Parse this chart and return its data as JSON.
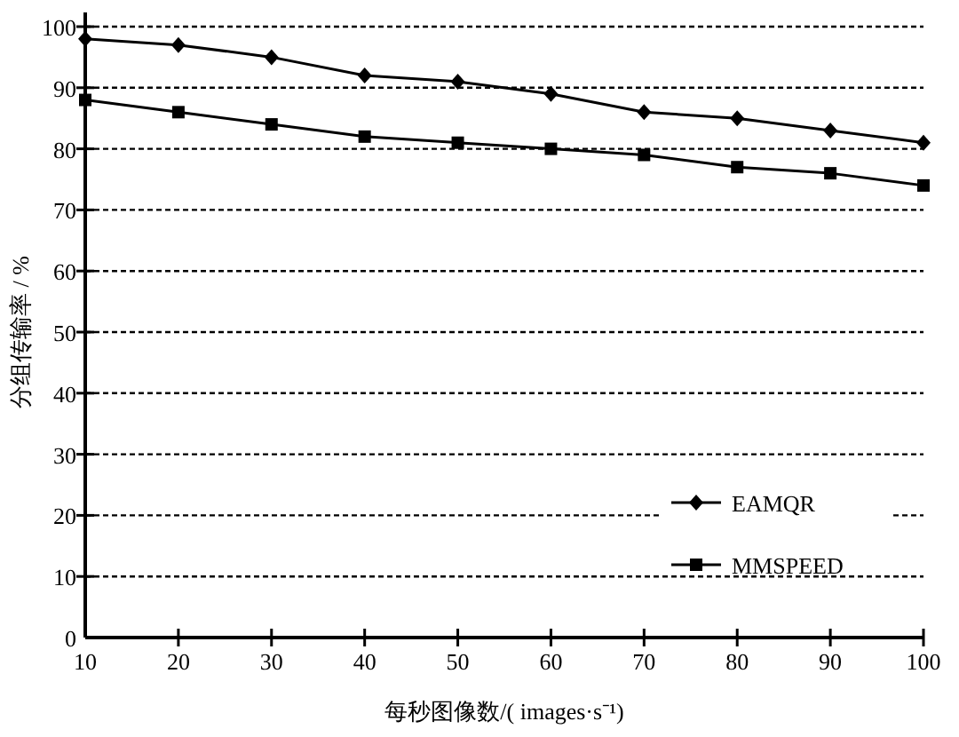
{
  "chart_data": {
    "type": "line",
    "xlabel": "每秒图像数/( images·s⁻¹)",
    "ylabel": "分组传输率 / %",
    "x": [
      10,
      20,
      30,
      40,
      50,
      60,
      70,
      80,
      90,
      100
    ],
    "series": [
      {
        "name": "EAMQR",
        "color": "#000000",
        "marker": "diamond",
        "values": [
          98,
          97,
          95,
          92,
          91,
          89,
          86,
          85,
          83,
          81
        ]
      },
      {
        "name": "MMSPEED",
        "color": "#000000",
        "marker": "square",
        "values": [
          88,
          86,
          84,
          82,
          81,
          80,
          79,
          77,
          76,
          74
        ]
      }
    ],
    "xlim": [
      10,
      100
    ],
    "xticks": [
      10,
      20,
      30,
      40,
      50,
      60,
      70,
      80,
      90,
      100
    ],
    "ylim": [
      0,
      100
    ],
    "yticks": [
      0,
      10,
      20,
      30,
      40,
      50,
      60,
      70,
      80,
      90,
      100
    ],
    "grid": "y",
    "legend": "bottom right",
    "line_style": "solid"
  }
}
